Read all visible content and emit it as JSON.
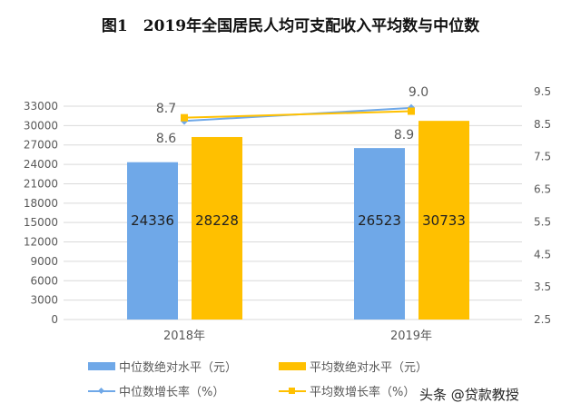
{
  "title": "图1　2019年全国居民人均可支配收入平均数与中位数",
  "watermark": "头条 @贷款教授",
  "colors": {
    "median": "#6fa8e8",
    "mean": "#ffc000",
    "grid": "#d9d9d9",
    "text": "#595959"
  },
  "chart_data": {
    "type": "bar",
    "title": "图1　2019年全国居民人均可支配收入平均数与中位数",
    "categories": [
      "2018年",
      "2019年"
    ],
    "series": [
      {
        "name": "中位数绝对水平（元）",
        "kind": "bar",
        "axis": "left",
        "values": [
          24336,
          26523
        ]
      },
      {
        "name": "平均数绝对水平（元）",
        "kind": "bar",
        "axis": "left",
        "values": [
          28228,
          30733
        ]
      },
      {
        "name": "中位数增长率（%）",
        "kind": "line",
        "axis": "right",
        "values": [
          8.6,
          9.0
        ]
      },
      {
        "name": "平均数增长率（%）",
        "kind": "line",
        "axis": "right",
        "values": [
          8.7,
          8.9
        ]
      }
    ],
    "left_axis": {
      "ylim": [
        0,
        33000
      ],
      "ticks": [
        "0",
        "3000",
        "6000",
        "9000",
        "12000",
        "15000",
        "18000",
        "21000",
        "24000",
        "27000",
        "30000",
        "33000"
      ]
    },
    "right_axis": {
      "ylim": [
        2.5,
        9.5
      ],
      "ticks": [
        "2.5",
        "3.5",
        "4.5",
        "5.5",
        "6.5",
        "7.5",
        "8.5",
        "9.5"
      ]
    },
    "grid": true,
    "legend_position": "bottom"
  }
}
